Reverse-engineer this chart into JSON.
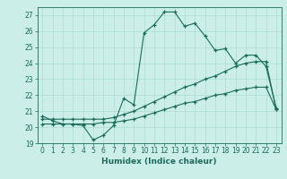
{
  "xlabel": "Humidex (Indice chaleur)",
  "xlim": [
    -0.5,
    23.5
  ],
  "ylim": [
    19,
    27.5
  ],
  "yticks": [
    19,
    20,
    21,
    22,
    23,
    24,
    25,
    26,
    27
  ],
  "xticks": [
    0,
    1,
    2,
    3,
    4,
    5,
    6,
    7,
    8,
    9,
    10,
    11,
    12,
    13,
    14,
    15,
    16,
    17,
    18,
    19,
    20,
    21,
    22,
    23
  ],
  "bg_color": "#cceee8",
  "grid_color": "#aaddcc",
  "line_color": "#1a6b5a",
  "line1_x": [
    0,
    1,
    2,
    3,
    4,
    5,
    6,
    7,
    8,
    9,
    10,
    11,
    12,
    13,
    14,
    15,
    16,
    17,
    18,
    19,
    20,
    21,
    22,
    23
  ],
  "line1_y": [
    20.7,
    20.4,
    20.2,
    20.2,
    20.1,
    19.2,
    19.5,
    20.1,
    21.8,
    21.4,
    25.9,
    26.4,
    27.2,
    27.2,
    26.3,
    26.5,
    25.7,
    24.8,
    24.9,
    24.0,
    24.5,
    24.5,
    23.8,
    21.2
  ],
  "line2_x": [
    0,
    1,
    2,
    3,
    4,
    5,
    6,
    7,
    8,
    9,
    10,
    11,
    12,
    13,
    14,
    15,
    16,
    17,
    18,
    19,
    20,
    21,
    22,
    23
  ],
  "line2_y": [
    20.5,
    20.5,
    20.5,
    20.5,
    20.5,
    20.5,
    20.5,
    20.6,
    20.8,
    21.0,
    21.3,
    21.6,
    21.9,
    22.2,
    22.5,
    22.7,
    23.0,
    23.2,
    23.5,
    23.8,
    24.0,
    24.1,
    24.1,
    21.1
  ],
  "line3_x": [
    0,
    1,
    2,
    3,
    4,
    5,
    6,
    7,
    8,
    9,
    10,
    11,
    12,
    13,
    14,
    15,
    16,
    17,
    18,
    19,
    20,
    21,
    22,
    23
  ],
  "line3_y": [
    20.2,
    20.2,
    20.2,
    20.2,
    20.2,
    20.2,
    20.3,
    20.3,
    20.4,
    20.5,
    20.7,
    20.9,
    21.1,
    21.3,
    21.5,
    21.6,
    21.8,
    22.0,
    22.1,
    22.3,
    22.4,
    22.5,
    22.5,
    21.1
  ]
}
